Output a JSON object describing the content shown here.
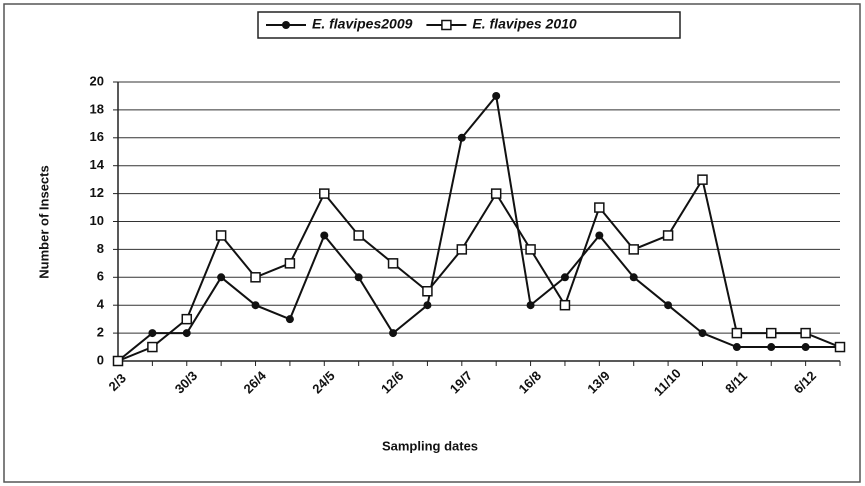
{
  "chart_data": {
    "type": "line",
    "xlabel": "Sampling dates",
    "ylabel": "Number of Insects",
    "categories": [
      "2/3",
      null,
      "30/3",
      null,
      "26/4",
      null,
      "24/5",
      null,
      "12/6",
      null,
      "19/7",
      null,
      "16/8",
      null,
      "13/9",
      null,
      "11/10",
      null,
      "8/11",
      null,
      "6/12",
      null
    ],
    "series": [
      {
        "name": "E. flavipes2009",
        "color": "#111111",
        "marker": "filled-circle",
        "values": [
          0,
          2,
          2,
          6,
          4,
          3,
          9,
          6,
          2,
          4,
          16,
          19,
          4,
          6,
          9,
          6,
          4,
          2,
          1,
          1,
          1,
          1
        ]
      },
      {
        "name": "E. flavipes 2010",
        "color": "#111111",
        "marker": "open-square",
        "values": [
          0,
          1,
          3,
          9,
          6,
          7,
          12,
          9,
          7,
          5,
          8,
          12,
          8,
          4,
          11,
          8,
          9,
          13,
          2,
          2,
          2,
          1
        ]
      }
    ],
    "ylim": [
      0,
      20
    ],
    "yticks": [
      0,
      2,
      4,
      6,
      8,
      10,
      12,
      14,
      16,
      18,
      20
    ],
    "grid": true,
    "legend": "top"
  }
}
